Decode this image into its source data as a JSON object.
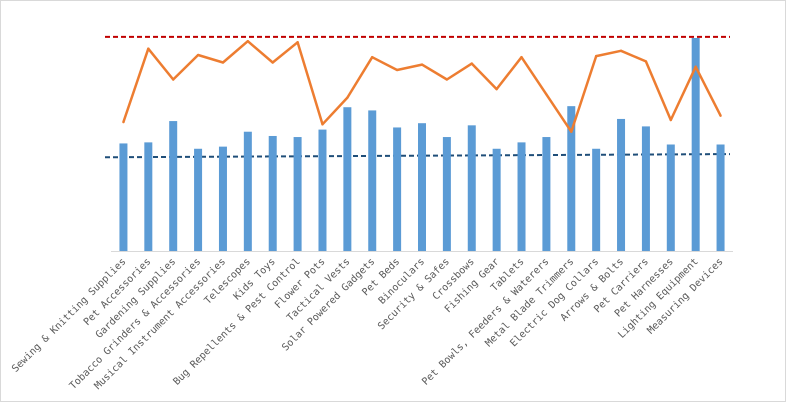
{
  "chart_data": {
    "type": "bar",
    "title": "",
    "xlabel": "",
    "ylabel": "",
    "ylim": [
      0,
      100
    ],
    "grid": false,
    "legend": "none",
    "categories": [
      "Sewing & Knitting Supplies",
      "Pet Accessories",
      "Gardening Supplies",
      "Tobacco Grinders & Accessories",
      "Musical Instrument Accessories",
      "Telescopes",
      "Kids Toys",
      "Bug Repellents & Pest Control",
      "Flower Pots",
      "Tactical Vests",
      "Solar Powered Gadgets",
      "Pet Beds",
      "Binoculars",
      "Security & Safes",
      "Crossbows",
      "Fishing Gear",
      "Tablets",
      "Pet Bowls, Feeders & Waterers",
      "Metal Blade Trimmers",
      "Electric Dog Collars",
      "Arrows & Bolts",
      "Pet Carriers",
      "Pet Harnesses",
      "Lighting Equipment",
      "Measuring Devices"
    ],
    "series": [
      {
        "type": "bar",
        "color": "#5b9bd5",
        "values": [
          50.5,
          51,
          61,
          48,
          49,
          56,
          54,
          53.5,
          57,
          67.5,
          66,
          58,
          60,
          53.5,
          59,
          48,
          51,
          53.5,
          68,
          48,
          62,
          58.5,
          50,
          100,
          50
        ]
      },
      {
        "type": "line",
        "color": "#ed7d31",
        "values": [
          60.5,
          95,
          80.5,
          92,
          88.5,
          98.5,
          88.5,
          98,
          59.5,
          72,
          91,
          85,
          87.5,
          80.5,
          88,
          76,
          91,
          73.5,
          56,
          91.5,
          94,
          89,
          61.5,
          86.5,
          63.5
        ]
      }
    ],
    "reference_lines": [
      {
        "style": "dashed",
        "color": "#c00000",
        "from": 100.5,
        "to": 100.5
      },
      {
        "style": "dashed",
        "color": "#1f4e79",
        "from": 44,
        "to": 45.5
      }
    ]
  }
}
